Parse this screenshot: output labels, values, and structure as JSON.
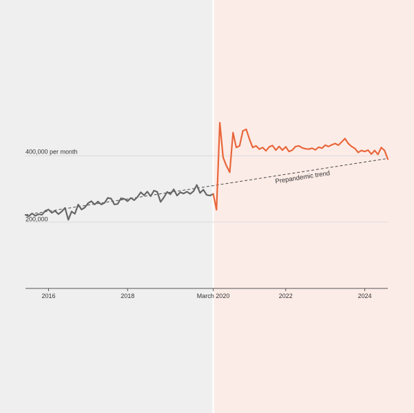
{
  "chart_data": {
    "type": "line",
    "title": "",
    "xlabel": "",
    "ylabel": "",
    "y_unit_label": "per month",
    "ylim": [
      0,
      600000
    ],
    "xlim": [
      "2015-06",
      "2024-08"
    ],
    "x_ticks": [
      {
        "label": "2016",
        "date": "2016-01"
      },
      {
        "label": "2018",
        "date": "2018-01"
      },
      {
        "label": "March 2020",
        "date": "2020-03"
      },
      {
        "label": "2022",
        "date": "2022-01"
      },
      {
        "label": "2024",
        "date": "2024-01"
      }
    ],
    "y_gridlines": [
      {
        "value": 200000,
        "label": "200,000"
      },
      {
        "value": 400000,
        "label": "400,000 per month"
      }
    ],
    "divider": {
      "date": "2020-03",
      "label": "March 2020"
    },
    "colors": {
      "pre_background": "#efefef",
      "post_background": "#fcece7",
      "pre_series": "#666666",
      "post_series": "#e8663a",
      "trend": "#444444",
      "grid": "#dcdcdc",
      "axis": "#555555"
    },
    "series": [
      {
        "period": "prepandemic",
        "x": [
          "2015-06",
          "2015-07",
          "2015-08",
          "2015-09",
          "2015-10",
          "2015-11",
          "2015-12",
          "2016-01",
          "2016-02",
          "2016-03",
          "2016-04",
          "2016-05",
          "2016-06",
          "2016-07",
          "2016-08",
          "2016-09",
          "2016-10",
          "2016-11",
          "2016-12",
          "2017-01",
          "2017-02",
          "2017-03",
          "2017-04",
          "2017-05",
          "2017-06",
          "2017-07",
          "2017-08",
          "2017-09",
          "2017-10",
          "2017-11",
          "2017-12",
          "2018-01",
          "2018-02",
          "2018-03",
          "2018-04",
          "2018-05",
          "2018-06",
          "2018-07",
          "2018-08",
          "2018-09",
          "2018-10",
          "2018-11",
          "2018-12",
          "2019-01",
          "2019-02",
          "2019-03",
          "2019-04",
          "2019-05",
          "2019-06",
          "2019-07",
          "2019-08",
          "2019-09",
          "2019-10",
          "2019-11",
          "2019-12",
          "2020-01",
          "2020-02",
          "2020-03"
        ],
        "values": [
          222000,
          218000,
          226000,
          219000,
          224000,
          222000,
          234000,
          238000,
          228000,
          234000,
          224000,
          232000,
          243000,
          207000,
          232000,
          225000,
          253000,
          238000,
          244000,
          257000,
          263000,
          253000,
          262000,
          253000,
          258000,
          273000,
          271000,
          253000,
          255000,
          272000,
          270000,
          263000,
          273000,
          266000,
          276000,
          290000,
          281000,
          292000,
          278000,
          295000,
          291000,
          261000,
          274000,
          291000,
          284000,
          299000,
          280000,
          290000,
          286000,
          292000,
          285000,
          293000,
          312000,
          288000,
          298000,
          282000,
          280000,
          285000
        ]
      },
      {
        "period": "pandemic",
        "x": [
          "2020-03",
          "2020-04",
          "2020-05",
          "2020-06",
          "2020-07",
          "2020-08",
          "2020-09",
          "2020-10",
          "2020-11",
          "2020-12",
          "2021-01",
          "2021-02",
          "2021-03",
          "2021-04",
          "2021-05",
          "2021-06",
          "2021-07",
          "2021-08",
          "2021-09",
          "2021-10",
          "2021-11",
          "2021-12",
          "2022-01",
          "2022-02",
          "2022-03",
          "2022-04",
          "2022-05",
          "2022-06",
          "2022-07",
          "2022-08",
          "2022-09",
          "2022-10",
          "2022-11",
          "2022-12",
          "2023-01",
          "2023-02",
          "2023-03",
          "2023-04",
          "2023-05",
          "2023-06",
          "2023-07",
          "2023-08",
          "2023-09",
          "2023-10",
          "2023-11",
          "2023-12",
          "2024-01",
          "2024-02",
          "2024-03",
          "2024-04",
          "2024-05",
          "2024-06",
          "2024-07",
          "2024-08"
        ],
        "values": [
          285000,
          237000,
          500000,
          395000,
          370000,
          350000,
          470000,
          425000,
          430000,
          475000,
          480000,
          450000,
          425000,
          430000,
          420000,
          425000,
          415000,
          427000,
          431000,
          417000,
          428000,
          417000,
          427000,
          413000,
          417000,
          428000,
          430000,
          424000,
          421000,
          420000,
          423000,
          418000,
          426000,
          423000,
          432000,
          428000,
          433000,
          437000,
          432000,
          442000,
          452000,
          437000,
          428000,
          422000,
          410000,
          416000,
          413000,
          417000,
          405000,
          416000,
          404000,
          425000,
          416000,
          390000
        ]
      }
    ],
    "trend": {
      "label": "Prepandemic trend",
      "start": {
        "date": "2015-06",
        "value": 222000
      },
      "end": {
        "date": "2024-08",
        "value": 392000
      }
    }
  }
}
